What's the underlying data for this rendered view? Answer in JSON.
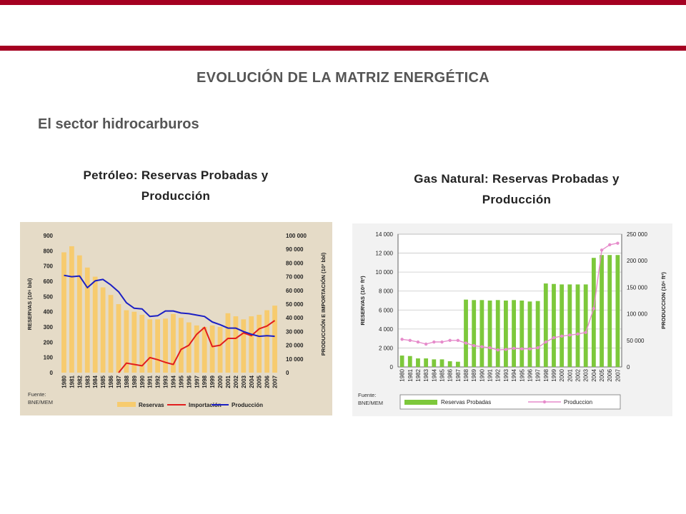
{
  "colors": {
    "accent": "#A50021",
    "title_gray": "#555555",
    "oil_panel_bg": "#E5DBC7",
    "gas_panel_bg": "#F2F2F2",
    "reserves_oil": "#F7CB6E",
    "importacion": "#E21E1E",
    "produccion_oil": "#1B1FC4",
    "reserves_gas": "#7DC83B",
    "produccion_gas": "#E68CCB"
  },
  "slide": {
    "title": "EVOLUCIÓN DE LA MATRIZ ENERGÉTICA",
    "section": "El sector hidrocarburos"
  },
  "chart_data": [
    {
      "type": "bar",
      "title_line1": "Petróleo: Reservas Probadas y",
      "title_line2": "Producción",
      "y_left_label": "RESERVAS (10⁶ bbl)",
      "y_right_label": "PRODUCCIÓN E IMPORTACIÓN (10³ bbl)",
      "y_left_range": [
        0,
        900
      ],
      "y_right_range": [
        0,
        100000
      ],
      "y_left_ticks": [
        "0",
        "100",
        "200",
        "300",
        "400",
        "500",
        "600",
        "700",
        "800",
        "900"
      ],
      "y_right_ticks": [
        "0",
        "10 000",
        "20 000",
        "30 000",
        "40 000",
        "50 000",
        "60 000",
        "70 000",
        "80 000",
        "90 000",
        "100 000"
      ],
      "categories": [
        "1980",
        "1981",
        "1982",
        "1983",
        "1984",
        "1985",
        "1986",
        "1987",
        "1988",
        "1989",
        "1990",
        "1991",
        "1992",
        "1993",
        "1994",
        "1995",
        "1996",
        "1997",
        "1998",
        "1999",
        "2000",
        "2001",
        "2002",
        "2003",
        "2004",
        "2005",
        "2006",
        "2007"
      ],
      "source_line1": "Fuente:",
      "source_line2": "BNE/MEM",
      "legend": [
        "Reservas",
        "Importación",
        "Producción"
      ],
      "series": [
        {
          "name": "Reservas",
          "axis": "left",
          "kind": "bar",
          "values": [
            790,
            830,
            770,
            690,
            630,
            560,
            510,
            450,
            410,
            400,
            380,
            350,
            350,
            355,
            385,
            360,
            330,
            310,
            300,
            310,
            300,
            390,
            370,
            350,
            370,
            380,
            410,
            440
          ]
        },
        {
          "name": "Importación",
          "axis": "right",
          "kind": "line",
          "values": [
            null,
            null,
            null,
            null,
            null,
            null,
            null,
            0,
            7000,
            6000,
            5000,
            11000,
            9500,
            7500,
            6000,
            17000,
            20000,
            28000,
            33000,
            19000,
            20000,
            25000,
            25000,
            29000,
            27000,
            32000,
            34000,
            38000
          ]
        },
        {
          "name": "Producción",
          "axis": "right",
          "kind": "line",
          "values": [
            71000,
            70000,
            70500,
            62000,
            67000,
            68000,
            64000,
            59000,
            51000,
            47000,
            46500,
            41000,
            41500,
            45000,
            45000,
            43500,
            43000,
            42000,
            41000,
            37000,
            35000,
            32500,
            32500,
            30000,
            28000,
            26500,
            27000,
            26500
          ]
        }
      ]
    },
    {
      "type": "bar",
      "title_line1": "Gas Natural: Reservas Probadas y",
      "title_line2": "Producción",
      "y_left_label": "RESERVAS (10⁹ ft³)",
      "y_right_label": "PRODUCCION (10⁶ ft³)",
      "y_left_range": [
        0,
        14000
      ],
      "y_right_range": [
        0,
        250000
      ],
      "y_left_ticks": [
        "0",
        "2 000",
        "4 000",
        "6 000",
        "8 000",
        "10 000",
        "12 000",
        "14 000"
      ],
      "y_right_ticks": [
        "0",
        "50 000",
        "100 000",
        "150 000",
        "200 000",
        "250 000"
      ],
      "categories": [
        "1980",
        "1981",
        "1982",
        "1983",
        "1984",
        "1985",
        "1986",
        "1987",
        "1988",
        "1989",
        "1990",
        "1991",
        "1992",
        "1993",
        "1994",
        "1995",
        "1996",
        "1997",
        "1998",
        "1999",
        "2000",
        "2001",
        "2002",
        "2003",
        "2004",
        "2005",
        "2006",
        "2007"
      ],
      "source_line1": "Fuente:",
      "source_line2": "BNE/MEM",
      "legend": [
        "Reservas Probadas",
        "Produccion"
      ],
      "series": [
        {
          "name": "Reservas Probadas",
          "axis": "left",
          "kind": "bar",
          "values": [
            1200,
            1150,
            900,
            900,
            800,
            800,
            600,
            550,
            7100,
            7050,
            7050,
            7000,
            7050,
            7000,
            7050,
            7000,
            6900,
            6950,
            8800,
            8750,
            8700,
            8700,
            8700,
            8700,
            11500,
            11800,
            11800,
            11800
          ]
        },
        {
          "name": "Produccion",
          "axis": "right",
          "kind": "line",
          "values": [
            52000,
            50000,
            47000,
            43000,
            47000,
            47000,
            50000,
            50000,
            45000,
            40000,
            38000,
            36000,
            32000,
            33000,
            35000,
            34000,
            34000,
            36000,
            47000,
            55000,
            58000,
            60000,
            62000,
            65000,
            110000,
            220000,
            230000,
            233000
          ]
        }
      ]
    }
  ]
}
